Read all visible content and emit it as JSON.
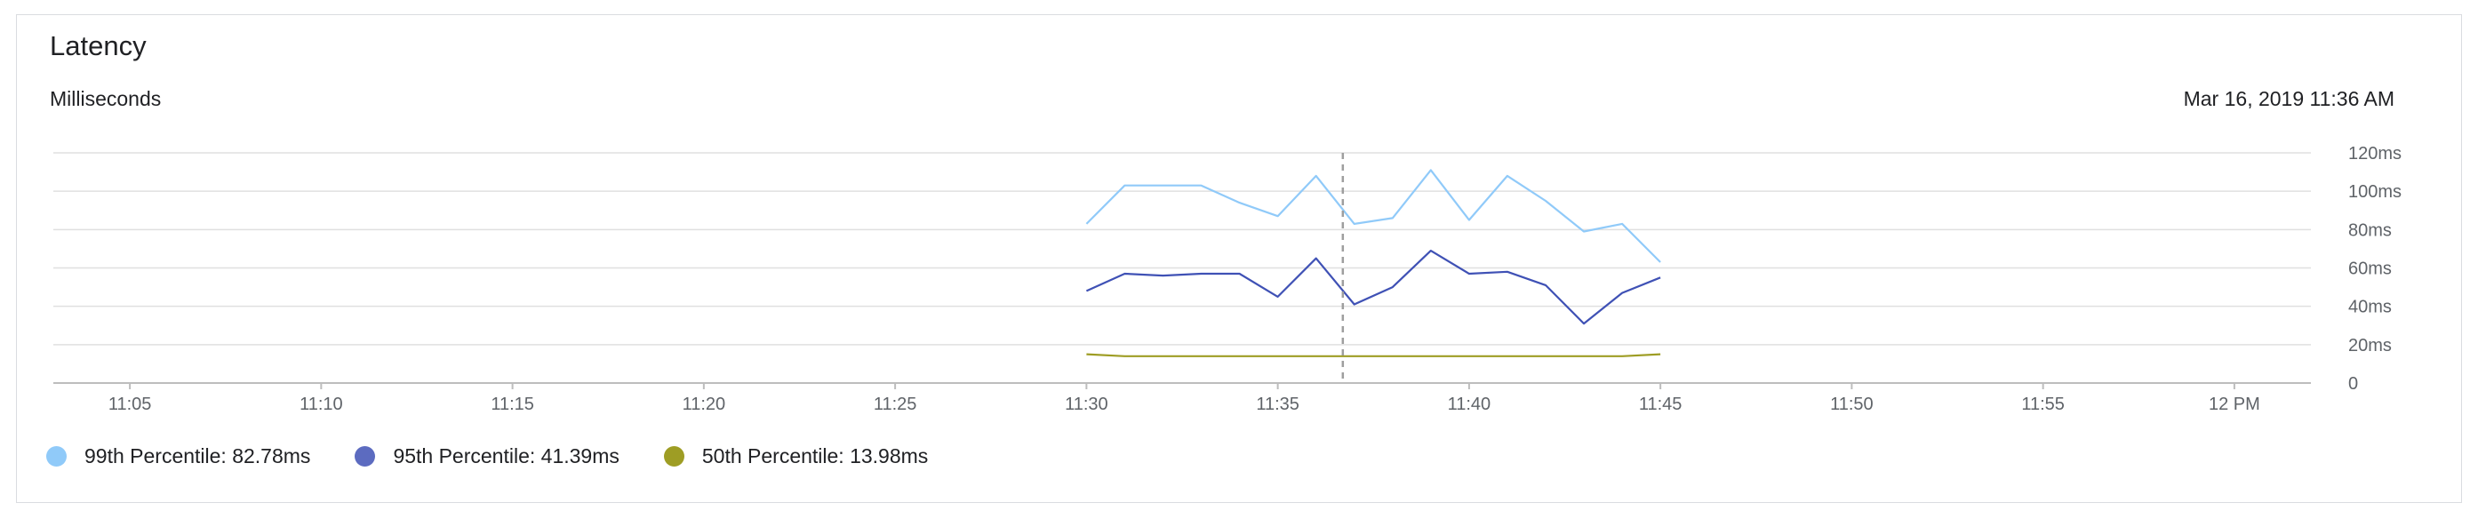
{
  "card": {
    "title": "Latency",
    "subtitle": "Milliseconds",
    "timestamp": "Mar 16, 2019 11:36 AM"
  },
  "colors": {
    "p99": "#90caf9",
    "p95": "#3f51b5",
    "p50": "#9e9d24",
    "grid": "#e0e0e0",
    "axis": "#bdbdbd",
    "cursor": "#9e9e9e"
  },
  "legend": [
    {
      "label": "99th Percentile: 82.78ms",
      "color": "#90caf9"
    },
    {
      "label": "95th Percentile: 41.39ms",
      "color": "#5c6bc0"
    },
    {
      "label": "50th Percentile: 13.98ms",
      "color": "#9e9d24"
    }
  ],
  "chart_data": {
    "type": "line",
    "title": "Latency",
    "ylabel": "Milliseconds",
    "ylim": [
      0,
      120
    ],
    "y_ticks": [
      0,
      20,
      40,
      60,
      80,
      100,
      120
    ],
    "y_tick_labels": [
      "0",
      "20ms",
      "40ms",
      "60ms",
      "80ms",
      "100ms",
      "120ms"
    ],
    "y_axis_position": "right",
    "x_tick_labels": [
      "11:05",
      "11:10",
      "11:15",
      "11:20",
      "11:25",
      "11:30",
      "11:35",
      "11:40",
      "11:45",
      "11:50",
      "11:55",
      "12 PM"
    ],
    "x_range": [
      "11:03",
      "11:62"
    ],
    "grid": true,
    "legend_position": "bottom-left",
    "cursor_x": "11:36.7",
    "x": [
      "11:30",
      "11:31",
      "11:32",
      "11:33",
      "11:34",
      "11:35",
      "11:36",
      "11:37",
      "11:38",
      "11:39",
      "11:40",
      "11:41",
      "11:42",
      "11:43",
      "11:44",
      "11:45"
    ],
    "series": [
      {
        "name": "99th Percentile",
        "color": "#90caf9",
        "values": [
          83,
          103,
          103,
          103,
          94,
          87,
          108,
          83,
          86,
          111,
          85,
          108,
          95,
          79,
          83,
          63
        ]
      },
      {
        "name": "95th Percentile",
        "color": "#3f51b5",
        "values": [
          48,
          57,
          56,
          57,
          57,
          45,
          65,
          41,
          50,
          69,
          57,
          58,
          51,
          31,
          47,
          55
        ]
      },
      {
        "name": "50th Percentile",
        "color": "#9e9d24",
        "values": [
          15,
          14,
          14,
          14,
          14,
          14,
          14,
          14,
          14,
          14,
          14,
          14,
          14,
          14,
          14,
          15
        ]
      }
    ]
  }
}
